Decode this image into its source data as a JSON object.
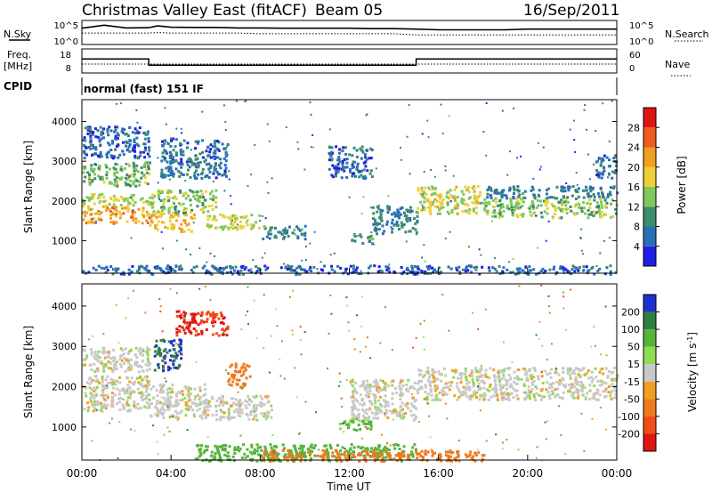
{
  "header": {
    "station": "Christmas Valley East (fitACF)",
    "beam": "Beam 05",
    "date": "16/Sep/2011"
  },
  "mini_panels": {
    "nsky_label": "N.Sky",
    "nsearch_label": "N.Search",
    "freq_label_line1": "Freq.",
    "freq_label_line2": "[MHz]",
    "nave_label": "Nave",
    "cpid_label": "CPID",
    "noise_ticks": [
      "10^5",
      "10^0"
    ],
    "freq_ticks": [
      "18",
      "8"
    ],
    "nave_ticks": [
      "60",
      "0"
    ],
    "cpid_value": "normal (fast) 151 IF"
  },
  "chart_data": [
    {
      "type": "line",
      "panel": "noise",
      "ylabel": "N.Sky",
      "ylabel_right": "N.Search",
      "scale": "log",
      "x": [
        0,
        1,
        2,
        3,
        3.4,
        4,
        5,
        6,
        7,
        8,
        9,
        10,
        11,
        12,
        13,
        14,
        15,
        16,
        17,
        18,
        19,
        20,
        21,
        22,
        23,
        24
      ],
      "series": [
        {
          "name": "N.Sky",
          "values": [
            5000,
            30000,
            6000,
            7000,
            20000,
            9000,
            8000,
            8000,
            6000,
            6000,
            5000,
            5000,
            5000,
            5000,
            4000,
            4000,
            3000,
            2000,
            2000,
            2000,
            2000,
            3000,
            3000,
            3000,
            3000,
            3000
          ]
        },
        {
          "name": "N.Search",
          "values": [
            300,
            300,
            300,
            300,
            400,
            300,
            300,
            300,
            300,
            200,
            200,
            200,
            200,
            200,
            200,
            200,
            100,
            100,
            100,
            100,
            100,
            100,
            100,
            100,
            100,
            100
          ]
        }
      ]
    },
    {
      "type": "line",
      "panel": "frequency",
      "ylabel": "Freq. [MHz]",
      "ylabel_right": "Nave",
      "x": [
        0,
        3,
        3,
        15,
        15,
        24
      ],
      "series": [
        {
          "name": "Freq. [MHz]",
          "values": [
            14.5,
            14.5,
            10.6,
            10.6,
            14.5,
            14.5
          ]
        },
        {
          "name": "Nave",
          "values": [
            20,
            20,
            20,
            20,
            20,
            20
          ]
        }
      ]
    },
    {
      "type": "heatmap",
      "panel": "power",
      "xlabel": "",
      "ylabel": "Slant Range [km]",
      "xlim": [
        0,
        24
      ],
      "ylim": [
        180,
        4550
      ],
      "yticks": [
        1000,
        2000,
        3000,
        4000
      ],
      "colorbar_label": "Power [dB]",
      "colorbar_ticks": [
        "4",
        "8",
        "12",
        "16",
        "20",
        "24",
        "28"
      ],
      "colorbar_colors": [
        "#1f1fe6",
        "#2a6fb4",
        "#3c8c6e",
        "#7fc85a",
        "#ecd03a",
        "#f0a020",
        "#ef5a1e",
        "#e01414"
      ],
      "regions": [
        {
          "t": [
            0.0,
            3.0
          ],
          "r": [
            1450,
            1900
          ],
          "p": 22
        },
        {
          "t": [
            0.0,
            3.0
          ],
          "r": [
            1900,
            2200
          ],
          "p": 16
        },
        {
          "t": [
            0.0,
            3.0
          ],
          "r": [
            2400,
            3000
          ],
          "p": 13
        },
        {
          "t": [
            0.0,
            3.0
          ],
          "r": [
            3100,
            3900
          ],
          "p": 6
        },
        {
          "t": [
            3.0,
            5.0
          ],
          "r": [
            1250,
            1700
          ],
          "p": 20
        },
        {
          "t": [
            3.0,
            6.0
          ],
          "r": [
            1700,
            2300
          ],
          "p": 14
        },
        {
          "t": [
            3.5,
            6.5
          ],
          "r": [
            2600,
            3600
          ],
          "p": 7
        },
        {
          "t": [
            5.5,
            8.0
          ],
          "r": [
            1300,
            1700
          ],
          "p": 16
        },
        {
          "t": [
            8.0,
            10.0
          ],
          "r": [
            1050,
            1400
          ],
          "p": 9
        },
        {
          "t": [
            11.0,
            13.0
          ],
          "r": [
            2600,
            3400
          ],
          "p": 6
        },
        {
          "t": [
            12.0,
            13.0
          ],
          "r": [
            950,
            1200
          ],
          "p": 10
        },
        {
          "t": [
            13.0,
            15.0
          ],
          "r": [
            1200,
            1900
          ],
          "p": 8
        },
        {
          "t": [
            15.0,
            18.0
          ],
          "r": [
            1700,
            2400
          ],
          "p": 17
        },
        {
          "t": [
            18.0,
            24.0
          ],
          "r": [
            1600,
            2100
          ],
          "p": 14
        },
        {
          "t": [
            18.0,
            24.0
          ],
          "r": [
            2100,
            2400
          ],
          "p": 8
        },
        {
          "t": [
            23.0,
            24.0
          ],
          "r": [
            2600,
            3200
          ],
          "p": 7
        },
        {
          "t": [
            0.0,
            24.0
          ],
          "r": [
            180,
            400
          ],
          "p": 6
        }
      ]
    },
    {
      "type": "heatmap",
      "panel": "velocity",
      "xlabel": "Time UT",
      "ylabel": "Slant Range [km]",
      "xlim": [
        0,
        24
      ],
      "ylim": [
        180,
        4550
      ],
      "yticks": [
        1000,
        2000,
        3000,
        4000
      ],
      "xticks": [
        "00:00",
        "04:00",
        "08:00",
        "12:00",
        "16:00",
        "20:00",
        "00:00"
      ],
      "colorbar_label": "Velocity [m s^-1]",
      "colorbar_ticks": [
        "200",
        "100",
        "50",
        "15",
        "-15",
        "-50",
        "-100",
        "-200"
      ],
      "colorbar_colors": [
        "#1f30d0",
        "#2f7f40",
        "#55b43c",
        "#8fdc50",
        "#c8c8c8",
        "#f0a020",
        "#ef7a1e",
        "#f04e18",
        "#e01414"
      ],
      "regions": [
        {
          "t": [
            0.0,
            3.0
          ],
          "r": [
            1400,
            2300
          ],
          "v": 0
        },
        {
          "t": [
            0.0,
            3.0
          ],
          "r": [
            2400,
            3000
          ],
          "v": 0
        },
        {
          "t": [
            3.0,
            5.5
          ],
          "r": [
            1250,
            2100
          ],
          "v": 0
        },
        {
          "t": [
            3.2,
            4.4
          ],
          "r": [
            2400,
            3200
          ],
          "v": 200
        },
        {
          "t": [
            4.2,
            6.5
          ],
          "r": [
            3300,
            3900
          ],
          "v": -200
        },
        {
          "t": [
            5.5,
            8.5
          ],
          "r": [
            1200,
            1800
          ],
          "v": 0
        },
        {
          "t": [
            6.5,
            7.5
          ],
          "r": [
            2000,
            2600
          ],
          "v": -80
        },
        {
          "t": [
            11.5,
            13.0
          ],
          "r": [
            950,
            1250
          ],
          "v": 60
        },
        {
          "t": [
            12.0,
            15.0
          ],
          "r": [
            1200,
            2200
          ],
          "v": 0
        },
        {
          "t": [
            15.0,
            24.0
          ],
          "r": [
            1700,
            2500
          ],
          "v": 0
        },
        {
          "t": [
            5.0,
            15.0
          ],
          "r": [
            180,
            600
          ],
          "v": 70
        },
        {
          "t": [
            8.0,
            18.0
          ],
          "r": [
            180,
            450
          ],
          "v": -70
        }
      ]
    }
  ]
}
